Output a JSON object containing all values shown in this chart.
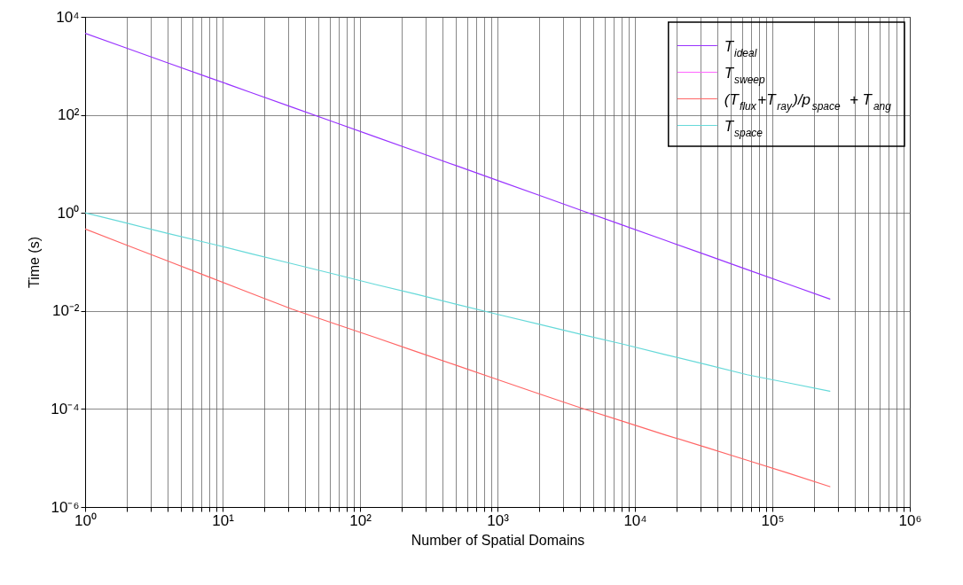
{
  "chart_data": {
    "type": "line",
    "xlabel": "Number of Spatial Domains",
    "ylabel": "Time (s)",
    "x": [
      1,
      2,
      4,
      8,
      16,
      32,
      64,
      128,
      256,
      512,
      1024,
      2048,
      4096,
      8192,
      16384,
      32768,
      65536,
      131072,
      262144
    ],
    "series": [
      {
        "name": "T$_{ideal}$",
        "color": "#9933ff",
        "values": [
          4600,
          2300,
          1150,
          575,
          288,
          144,
          72,
          36,
          18,
          9.0,
          4.5,
          2.25,
          1.12,
          0.56,
          0.28,
          0.14,
          0.07,
          0.035,
          0.0175
        ]
      },
      {
        "name": "T$_{sweep}$",
        "color": "#ff66ff",
        "values": [
          null,
          null,
          null,
          null,
          null,
          null,
          null,
          null,
          null,
          null,
          null,
          null,
          null,
          null,
          null,
          null,
          null,
          null,
          null
        ]
      },
      {
        "name": "(T$_{flux}$+T$_{ray}$)/p$_{space}$ + T$_{ang}$",
        "color": "#ff6666",
        "values": [
          0.47,
          0.22,
          0.104,
          0.049,
          0.023,
          0.0109,
          0.0056,
          0.0029,
          0.00148,
          0.00076,
          0.00039,
          0.0002,
          0.000104,
          5.6e-05,
          3e-05,
          1.65e-05,
          9e-06,
          4.9e-06,
          2.6e-06
        ]
      },
      {
        "name": "T$_{space}$",
        "color": "#66d9d9",
        "values": [
          1,
          0.62,
          0.38,
          0.24,
          0.148,
          0.092,
          0.057,
          0.035,
          0.022,
          0.0135,
          0.0084,
          0.0053,
          0.0033,
          0.0021,
          0.0013,
          0.00081,
          0.0005,
          0.00034,
          0.00023
        ]
      }
    ],
    "log": "xy",
    "xlim": [
      1,
      1000000
    ],
    "xticks": [
      {
        "value": 1,
        "label": "10⁰"
      },
      {
        "value": 2,
        "label": null
      },
      {
        "value": 3,
        "label": null
      },
      {
        "value": 4,
        "label": null
      },
      {
        "value": 5,
        "label": null
      },
      {
        "value": 6,
        "label": null
      },
      {
        "value": 7,
        "label": null
      },
      {
        "value": 8,
        "label": null
      },
      {
        "value": 9,
        "label": null
      },
      {
        "value": 10,
        "label": "10¹"
      },
      {
        "value": 20,
        "label": null
      },
      {
        "value": 30,
        "label": null
      },
      {
        "value": 40,
        "label": null
      },
      {
        "value": 50,
        "label": null
      },
      {
        "value": 60,
        "label": null
      },
      {
        "value": 70,
        "label": null
      },
      {
        "value": 80,
        "label": null
      },
      {
        "value": 90,
        "label": null
      },
      {
        "value": 100,
        "label": "10²"
      },
      {
        "value": 200,
        "label": null
      },
      {
        "value": 300,
        "label": null
      },
      {
        "value": 400,
        "label": null
      },
      {
        "value": 500,
        "label": null
      },
      {
        "value": 600,
        "label": null
      },
      {
        "value": 700,
        "label": null
      },
      {
        "value": 800,
        "label": null
      },
      {
        "value": 900,
        "label": null
      },
      {
        "value": 1000,
        "label": "10³"
      },
      {
        "value": 2000,
        "label": null
      },
      {
        "value": 3000,
        "label": null
      },
      {
        "value": 4000,
        "label": null
      },
      {
        "value": 5000,
        "label": null
      },
      {
        "value": 6000,
        "label": null
      },
      {
        "value": 7000,
        "label": null
      },
      {
        "value": 8000,
        "label": null
      },
      {
        "value": 9000,
        "label": null
      },
      {
        "value": 10000,
        "label": "10⁴"
      },
      {
        "value": 20000,
        "label": null
      },
      {
        "value": 30000,
        "label": null
      },
      {
        "value": 40000,
        "label": null
      },
      {
        "value": 50000,
        "label": null
      },
      {
        "value": 60000,
        "label": null
      },
      {
        "value": 70000,
        "label": null
      },
      {
        "value": 80000,
        "label": null
      },
      {
        "value": 90000,
        "label": null
      },
      {
        "value": 100000,
        "label": "10⁵"
      },
      {
        "value": 200000,
        "label": null
      },
      {
        "value": 300000,
        "label": null
      },
      {
        "value": 400000,
        "label": null
      },
      {
        "value": 500000,
        "label": null
      },
      {
        "value": 600000,
        "label": null
      },
      {
        "value": 700000,
        "label": null
      },
      {
        "value": 800000,
        "label": null
      },
      {
        "value": 900000,
        "label": null
      },
      {
        "value": 1000000,
        "label": "10⁶"
      }
    ],
    "ylim": [
      1e-06,
      10000
    ],
    "yticks": [
      {
        "value": 1e-06,
        "label": "10⁻⁶"
      },
      {
        "value": 0.0001,
        "label": "10⁻⁴"
      },
      {
        "value": 0.01,
        "label": "10⁻²"
      },
      {
        "value": 1,
        "label": "10⁰"
      },
      {
        "value": 100,
        "label": "10²"
      },
      {
        "value": 10000,
        "label": "10⁴"
      }
    ],
    "grid": true,
    "legend": "top right",
    "line_style": "solid"
  }
}
